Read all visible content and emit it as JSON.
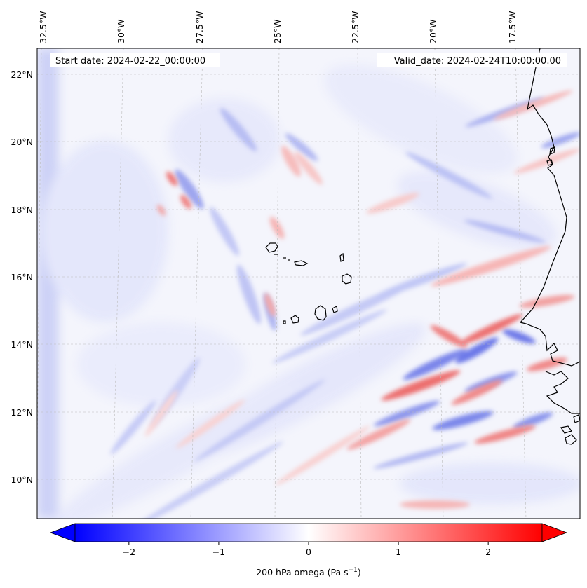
{
  "map": {
    "start_date_label": "Start date: 2024-02-22_00:00:00",
    "valid_date_label": "Valid_date: 2024-02-24T10:00:00.00",
    "lon_labels": [
      "32.5°W",
      "30°W",
      "27.5°W",
      "25°W",
      "22.5°W",
      "20°W",
      "17.5°W"
    ],
    "lat_labels": [
      "22°N",
      "20°N",
      "18°N",
      "16°N",
      "14°N",
      "12°N",
      "10°N"
    ],
    "field": "200 hPa omega",
    "units": "Pa s⁻¹"
  },
  "colorbar": {
    "label": "200 hPa omega (Pa s",
    "label_sup": "−1",
    "label_end": ")",
    "ticks": [
      "−2",
      "−1",
      "0",
      "1",
      "2"
    ],
    "tick_values": [
      -2,
      -1,
      0,
      1,
      2
    ],
    "range": [
      -2.6,
      2.6
    ],
    "color_low": "#0000ff",
    "color_mid": "#ffffff",
    "color_high": "#ff0000",
    "extend": "both"
  },
  "colors": {
    "coastline": "#000000",
    "gridline": "#bbbbbb"
  }
}
